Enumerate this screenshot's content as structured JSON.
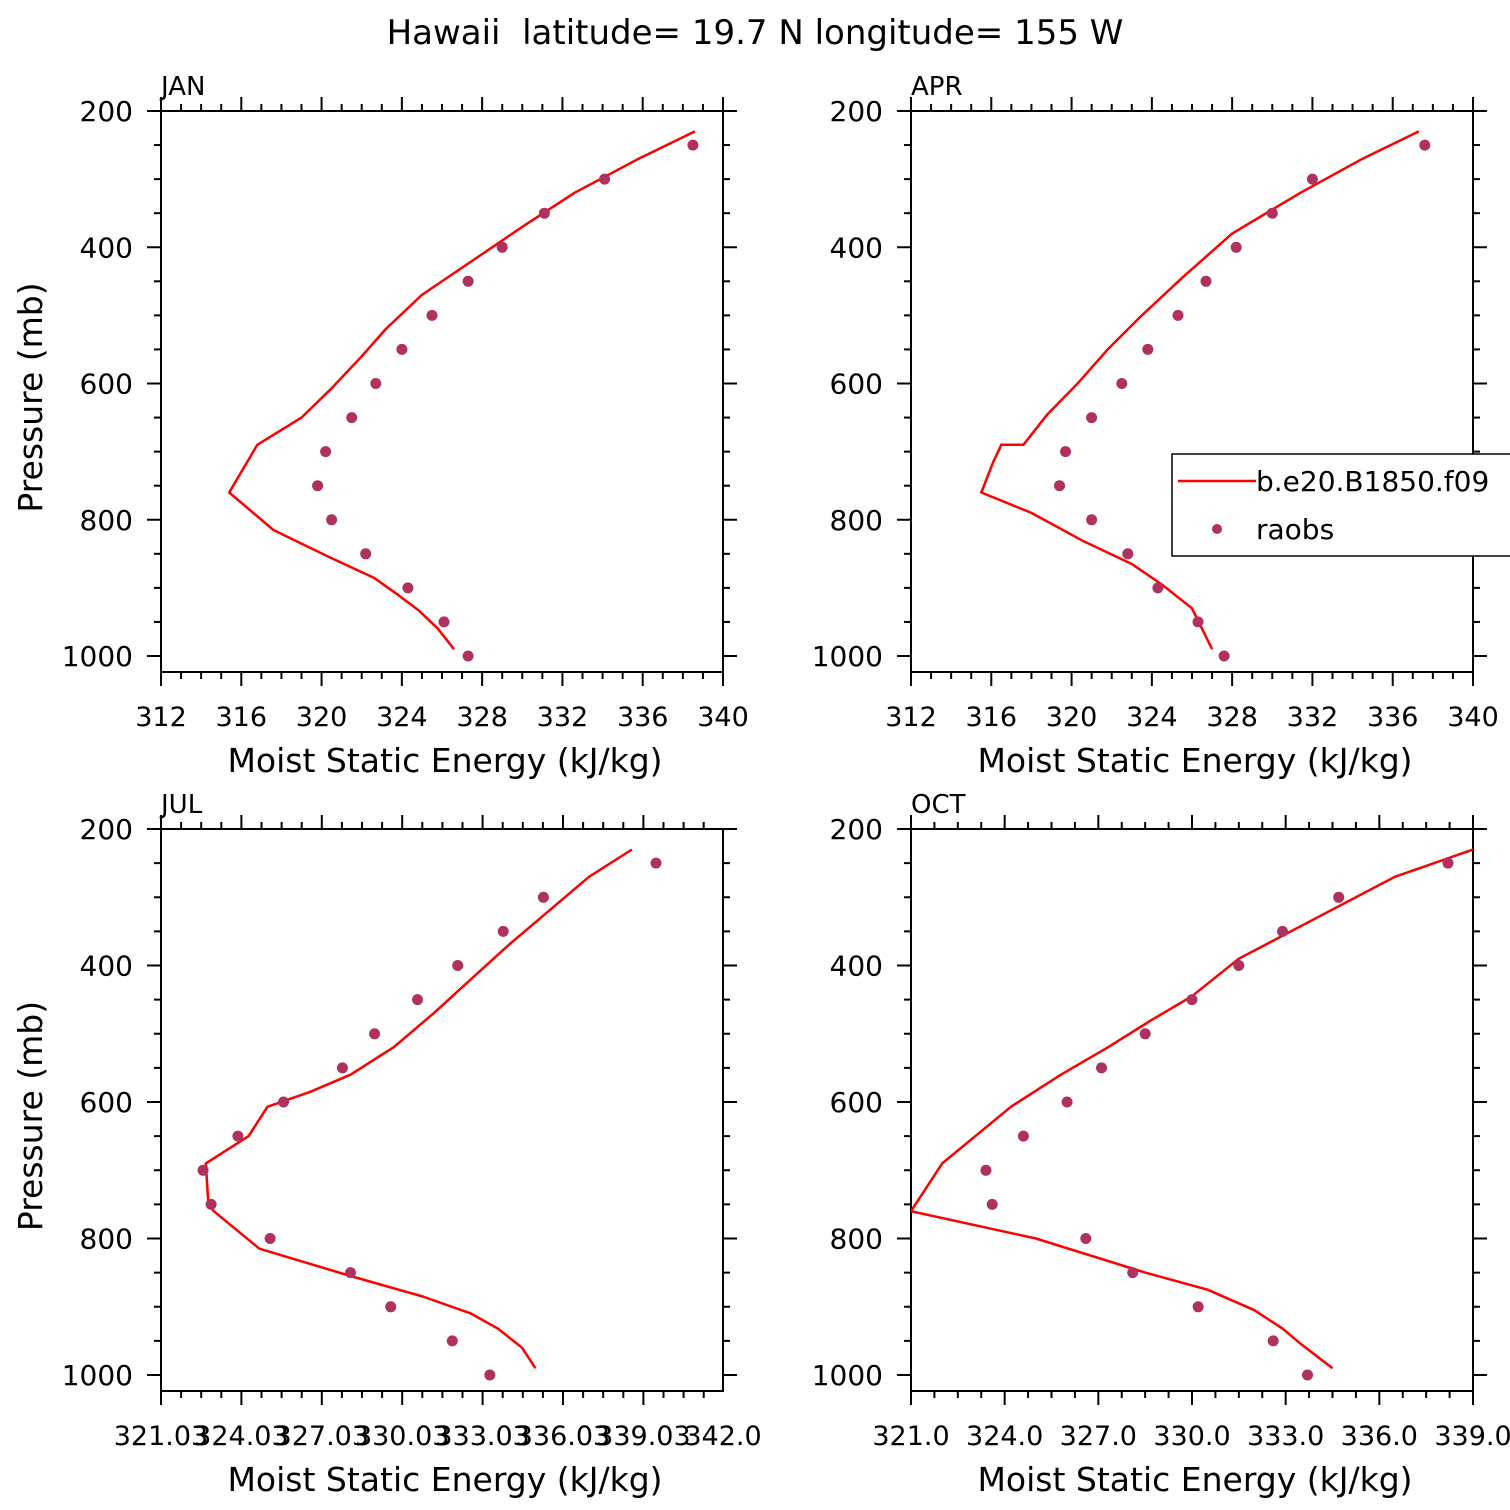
{
  "title": "Hawaii  latitude= 19.7 N longitude= 155 W",
  "colors": {
    "model": "#ff0000",
    "obs": "#b03060",
    "axis": "#000000",
    "legend_border": "#000000"
  },
  "legend": {
    "model_label": "b.e20.B1850.f09",
    "obs_label": "raobs"
  },
  "chart_data": [
    {
      "type": "line",
      "panel_title": "JAN",
      "xlabel": "Moist Static Energy (kJ/kg)",
      "ylabel": "Pressure (mb)",
      "xlim": [
        312,
        340
      ],
      "ylim": [
        200,
        1025
      ],
      "y_inverted": true,
      "xticks": [
        312,
        316,
        320,
        324,
        328,
        332,
        336,
        340
      ],
      "xtick_labels": [
        "312",
        "316",
        "320",
        "324",
        "328",
        "332",
        "336",
        "340"
      ],
      "yticks": [
        200,
        400,
        600,
        800,
        1000
      ],
      "series": [
        {
          "name": "b.e20.B1850.f09",
          "kind": "line",
          "x": [
            338.6,
            335.8,
            332.6,
            330.0,
            327.5,
            325.0,
            323.2,
            322.0,
            320.5,
            319.0,
            316.8,
            315.4,
            317.6,
            320.4,
            322.6,
            323.8,
            324.8,
            325.8,
            326.6
          ],
          "y": [
            230,
            270,
            320,
            370,
            420,
            470,
            520,
            560,
            607,
            650,
            690,
            760,
            815,
            855,
            885,
            910,
            932,
            960,
            990
          ]
        },
        {
          "name": "raobs",
          "kind": "scatter",
          "x": [
            338.5,
            334.1,
            331.1,
            329.0,
            327.3,
            325.5,
            324.0,
            322.7,
            321.5,
            320.2,
            319.8,
            320.5,
            322.2,
            324.3,
            326.1,
            327.3
          ],
          "y": [
            250,
            300,
            350,
            400,
            450,
            500,
            550,
            600,
            650,
            700,
            750,
            800,
            850,
            900,
            950,
            1000
          ]
        }
      ]
    },
    {
      "type": "line",
      "panel_title": "APR",
      "xlabel": "Moist Static Energy (kJ/kg)",
      "ylabel": "",
      "xlim": [
        312,
        340
      ],
      "ylim": [
        200,
        1025
      ],
      "y_inverted": true,
      "xticks": [
        312,
        316,
        320,
        324,
        328,
        332,
        336,
        340
      ],
      "xtick_labels": [
        "312",
        "316",
        "320",
        "324",
        "328",
        "332",
        "336",
        "340"
      ],
      "yticks": [
        200,
        400,
        600,
        800,
        1000
      ],
      "series": [
        {
          "name": "b.e20.B1850.f09",
          "kind": "line",
          "x": [
            337.3,
            334.5,
            331.4,
            328.0,
            325.5,
            323.5,
            321.8,
            320.3,
            318.8,
            317.6,
            316.5,
            316.1,
            315.5,
            318.0,
            320.5,
            323.0,
            324.5,
            326.0,
            327.0
          ],
          "y": [
            230,
            270,
            320,
            380,
            445,
            500,
            550,
            600,
            645,
            690,
            690,
            715,
            760,
            790,
            830,
            865,
            895,
            930,
            990
          ]
        },
        {
          "name": "raobs",
          "kind": "scatter",
          "x": [
            337.6,
            332.0,
            330.0,
            328.2,
            326.7,
            325.3,
            323.8,
            322.5,
            321.0,
            319.7,
            319.4,
            321.0,
            322.8,
            324.3,
            326.3,
            327.6
          ],
          "y": [
            250,
            300,
            350,
            400,
            450,
            500,
            550,
            600,
            650,
            700,
            750,
            800,
            850,
            900,
            950,
            1000
          ]
        }
      ]
    },
    {
      "type": "line",
      "panel_title": "JUL",
      "xlabel": "Moist Static Energy (kJ/kg)",
      "ylabel": "Pressure (mb)",
      "xlim": [
        321.03,
        342.0
      ],
      "ylim": [
        200,
        1025
      ],
      "y_inverted": true,
      "xticks": [
        321.03,
        324.03,
        327.03,
        330.03,
        333.03,
        336.03,
        339.03,
        342.0
      ],
      "xtick_labels": [
        "321.03",
        "324.03",
        "327.03",
        "330.03",
        "333.03",
        "336.03",
        "339.03",
        "342.0"
      ],
      "yticks": [
        200,
        400,
        600,
        800,
        1000
      ],
      "series": [
        {
          "name": "b.e20.B1850.f09",
          "kind": "line",
          "x": [
            338.6,
            337.0,
            335.5,
            334.0,
            332.6,
            331.2,
            329.7,
            328.1,
            326.6,
            325.0,
            324.3,
            322.7,
            322.8,
            323.0,
            324.7,
            328.1,
            330.8,
            332.6,
            333.6,
            334.5,
            335.0
          ],
          "y": [
            230,
            270,
            320,
            370,
            420,
            470,
            520,
            560,
            585,
            607,
            650,
            690,
            750,
            760,
            815,
            855,
            885,
            910,
            932,
            960,
            990
          ]
        },
        {
          "name": "raobs",
          "kind": "scatter",
          "x": [
            339.5,
            335.3,
            333.8,
            332.1,
            330.6,
            329.0,
            327.8,
            325.6,
            323.9,
            322.6,
            322.9,
            325.1,
            328.1,
            329.6,
            331.9,
            333.3
          ],
          "y": [
            250,
            300,
            350,
            400,
            450,
            500,
            550,
            600,
            650,
            700,
            750,
            800,
            850,
            900,
            950,
            1000
          ]
        }
      ]
    },
    {
      "type": "line",
      "panel_title": "OCT",
      "xlabel": "Moist Static Energy (kJ/kg)",
      "ylabel": "",
      "xlim": [
        321.0,
        339.0
      ],
      "ylim": [
        200,
        1025
      ],
      "y_inverted": true,
      "xticks": [
        321.0,
        324.0,
        327.0,
        330.0,
        333.0,
        336.0,
        339.0
      ],
      "xtick_labels": [
        "321.0",
        "324.0",
        "327.0",
        "330.0",
        "333.0",
        "336.0",
        "339.0"
      ],
      "yticks": [
        200,
        400,
        600,
        800,
        1000
      ],
      "series": [
        {
          "name": "b.e20.B1850.f09",
          "kind": "line",
          "x": [
            339.0,
            336.5,
            334.0,
            331.5,
            330.0,
            328.7,
            327.3,
            325.8,
            324.2,
            322.0,
            321.0,
            325.0,
            328.5,
            330.5,
            332.0,
            332.9,
            333.5,
            334.5
          ],
          "y": [
            230,
            270,
            330,
            390,
            445,
            480,
            520,
            560,
            607,
            690,
            760,
            800,
            850,
            875,
            905,
            932,
            955,
            990
          ]
        },
        {
          "name": "raobs",
          "kind": "scatter",
          "x": [
            338.2,
            334.7,
            332.9,
            331.5,
            330.0,
            328.5,
            327.1,
            326.0,
            324.6,
            323.4,
            323.6,
            326.6,
            328.1,
            330.2,
            332.6,
            333.7
          ],
          "y": [
            250,
            300,
            350,
            400,
            450,
            500,
            550,
            600,
            650,
            700,
            750,
            800,
            850,
            900,
            950,
            1000
          ]
        }
      ]
    }
  ]
}
